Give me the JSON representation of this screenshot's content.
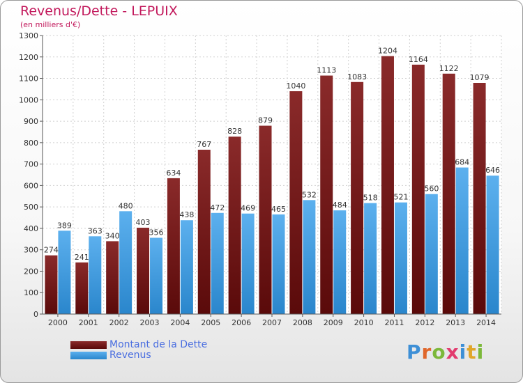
{
  "title": "Revenus/Dette - LEPUIX",
  "subtitle": "(en milliers d'€)",
  "brand": {
    "name": "Proxiti",
    "letters": [
      {
        "ch": "P",
        "color": "#3d8fd6"
      },
      {
        "ch": "r",
        "color": "#e0662a"
      },
      {
        "ch": "o",
        "color": "#7cb83a"
      },
      {
        "ch": "x",
        "color": "#e23b6e"
      },
      {
        "ch": "i",
        "color": "#3d8fd6"
      },
      {
        "ch": "t",
        "color": "#e0a62a"
      },
      {
        "ch": "i",
        "color": "#7cb83a"
      }
    ]
  },
  "colors": {
    "dette": "#7a2020",
    "revenus": "#3a9ae0",
    "label": "#4a6ee0",
    "title": "#c2185b"
  },
  "chart_data": {
    "type": "bar",
    "title": "Revenus/Dette - LEPUIX",
    "subtitle": "(en milliers d'€)",
    "categories": [
      "2000",
      "2001",
      "2002",
      "2003",
      "2004",
      "2005",
      "2006",
      "2007",
      "2008",
      "2009",
      "2010",
      "2011",
      "2012",
      "2013",
      "2014"
    ],
    "series": [
      {
        "name": "Montant de la Dette",
        "values": [
          274,
          241,
          340,
          403,
          634,
          767,
          828,
          879,
          1040,
          1113,
          1083,
          1204,
          1164,
          1122,
          1079
        ]
      },
      {
        "name": "Revenus",
        "values": [
          389,
          363,
          480,
          356,
          438,
          472,
          469,
          465,
          532,
          484,
          518,
          521,
          560,
          684,
          646
        ]
      }
    ],
    "ylim": [
      0,
      1300
    ],
    "yticks": [
      0,
      100,
      200,
      300,
      400,
      500,
      600,
      700,
      800,
      900,
      1000,
      1100,
      1200,
      1300
    ],
    "grid": true,
    "legend": "bottom-left"
  }
}
